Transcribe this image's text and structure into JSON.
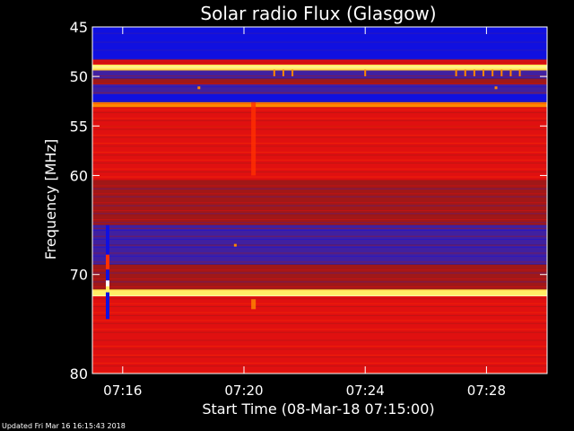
{
  "chart_data": {
    "type": "heatmap",
    "title": "Solar radio Flux (Glasgow)",
    "xlabel": "Start Time (08-Mar-18 07:15:00)",
    "ylabel": "Frequency [MHz]",
    "x_ticks": [
      "07:16",
      "07:20",
      "07:24",
      "07:28"
    ],
    "x_tick_minutes": [
      1,
      5,
      9,
      13
    ],
    "xlim_minutes": [
      0,
      15
    ],
    "y_ticks": [
      45,
      50,
      55,
      60,
      70,
      80
    ],
    "ylim": [
      45,
      80
    ],
    "colormap": [
      "#1010e0",
      "#4020a0",
      "#a01818",
      "#e01010",
      "#ff3000",
      "#ff8800",
      "#ffee66",
      "#ffffff"
    ],
    "bands": [
      {
        "from": 45.0,
        "to": 48.3,
        "level": 0
      },
      {
        "from": 48.3,
        "to": 48.8,
        "level": 3
      },
      {
        "from": 48.8,
        "to": 49.4,
        "level": 6
      },
      {
        "from": 49.4,
        "to": 50.2,
        "level": 1
      },
      {
        "from": 50.2,
        "to": 50.8,
        "level": 2
      },
      {
        "from": 50.8,
        "to": 51.8,
        "level": 1
      },
      {
        "from": 51.8,
        "to": 52.6,
        "level": 0
      },
      {
        "from": 52.6,
        "to": 53.1,
        "level": 5
      },
      {
        "from": 53.1,
        "to": 55.0,
        "level": 3
      },
      {
        "from": 55.0,
        "to": 60.5,
        "level": 3
      },
      {
        "from": 60.5,
        "to": 62.0,
        "level": 2
      },
      {
        "from": 62.0,
        "to": 64.0,
        "level": 2
      },
      {
        "from": 64.0,
        "to": 65.0,
        "level": 2
      },
      {
        "from": 65.0,
        "to": 67.0,
        "level": 1
      },
      {
        "from": 67.0,
        "to": 69.0,
        "level": 1
      },
      {
        "from": 69.0,
        "to": 71.5,
        "level": 2
      },
      {
        "from": 71.5,
        "to": 72.2,
        "level": 6
      },
      {
        "from": 72.2,
        "to": 80.0,
        "level": 3
      }
    ],
    "vertical_features": [
      {
        "minute": 5.3,
        "from": 52.6,
        "to": 60.0,
        "level": 4
      },
      {
        "minute": 5.3,
        "from": 72.5,
        "to": 73.5,
        "level": 5
      }
    ],
    "spikes": [
      {
        "minute": 6.0,
        "freq": 49.8
      },
      {
        "minute": 6.3,
        "freq": 49.8
      },
      {
        "minute": 6.6,
        "freq": 49.8
      },
      {
        "minute": 9.0,
        "freq": 49.8
      },
      {
        "minute": 12.0,
        "freq": 49.8
      },
      {
        "minute": 12.3,
        "freq": 49.8
      },
      {
        "minute": 12.6,
        "freq": 49.8
      },
      {
        "minute": 12.9,
        "freq": 49.8
      },
      {
        "minute": 13.2,
        "freq": 49.8
      },
      {
        "minute": 13.5,
        "freq": 49.8
      },
      {
        "minute": 13.8,
        "freq": 49.8
      },
      {
        "minute": 14.1,
        "freq": 49.8
      }
    ],
    "point_markers": [
      {
        "minute": 3.5,
        "freq": 51.1
      },
      {
        "minute": 13.3,
        "freq": 51.1
      },
      {
        "minute": 4.7,
        "freq": 67.0
      }
    ],
    "grid": false,
    "legend": "none"
  },
  "footer": {
    "updated": "Updated Fri Mar 16 16:15:43 2018"
  }
}
